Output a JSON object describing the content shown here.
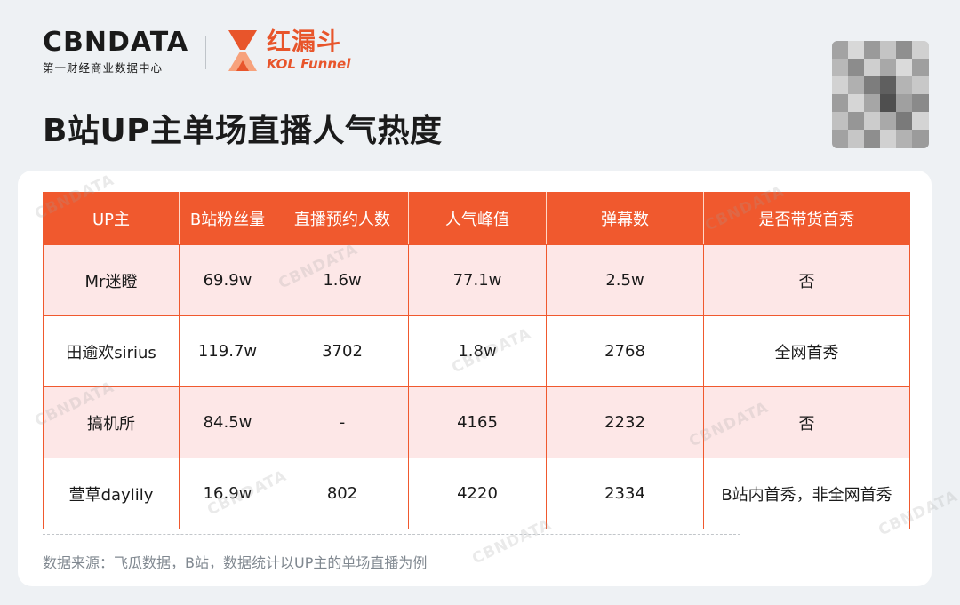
{
  "logo": {
    "cbn_mark": "CBNDATA",
    "cbn_sub": "第一财经商业数据中心",
    "kol_cn": "红漏斗",
    "kol_en": "KOL Funnel"
  },
  "title": "B站UP主单场直播人气热度",
  "watermark": "CBNDATA",
  "table": {
    "headers": [
      "UP主",
      "B站粉丝量",
      "直播预约人数",
      "人气峰值",
      "弹幕数",
      "是否带货首秀"
    ],
    "rows": [
      [
        "Mr迷瞪",
        "69.9w",
        "1.6w",
        "77.1w",
        "2.5w",
        "否"
      ],
      [
        "田逾欢sirius",
        "119.7w",
        "3702",
        "1.8w",
        "2768",
        "全网首秀"
      ],
      [
        "搞机所",
        "84.5w",
        "-",
        "4165",
        "2232",
        "否"
      ],
      [
        "萱草daylily",
        "16.9w",
        "802",
        "4220",
        "2334",
        "B站内首秀，非全网首秀"
      ]
    ]
  },
  "source": "数据来源：飞瓜数据，B站，数据统计以UP主的单场直播为例",
  "colors": {
    "accent": "#f0592e",
    "row_tint": "#fde7e7",
    "brand_kol": "#e8552b"
  },
  "icons": {
    "kol_logo": "funnel-hourglass-icon",
    "qr": "qr-code-icon"
  }
}
